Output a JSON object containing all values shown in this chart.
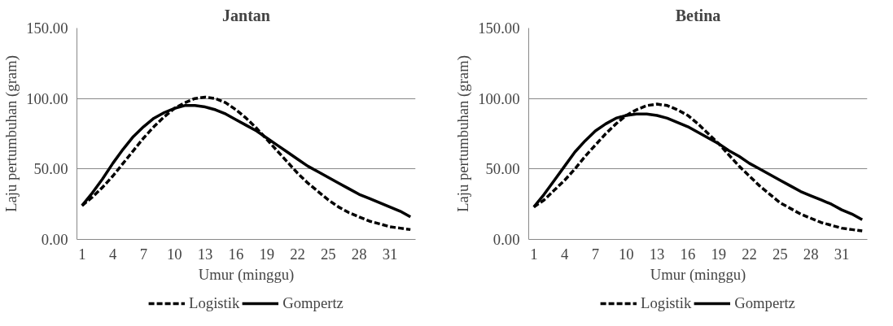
{
  "chart_data": [
    {
      "type": "line",
      "title": "Jantan",
      "xlabel": "Umur (minggu)",
      "ylabel": "Laju pertumbuhan (gram)",
      "categories": [
        "1",
        null,
        null,
        "4",
        null,
        null,
        "7",
        null,
        null,
        "10",
        null,
        null,
        "13",
        null,
        null,
        "16",
        null,
        null,
        "19",
        null,
        null,
        "22",
        null,
        null,
        "25",
        null,
        null,
        "28",
        null,
        null,
        "31",
        null,
        null
      ],
      "series": [
        {
          "name": "Logistik",
          "color": "#000000",
          "line_style": "dashed",
          "values": [
            24,
            30,
            37,
            45,
            54,
            63,
            72,
            80,
            87,
            93,
            97,
            100,
            101,
            100,
            97,
            92,
            86,
            79,
            71,
            63,
            55,
            47,
            40,
            34,
            28,
            23,
            19,
            16,
            13,
            11,
            9,
            8,
            7
          ]
        },
        {
          "name": "Gompertz",
          "color": "#000000",
          "line_style": "solid",
          "values": [
            24,
            33,
            43,
            54,
            64,
            73,
            80,
            86,
            90,
            93,
            95,
            95,
            94,
            92,
            89,
            85,
            81,
            77,
            72,
            67,
            62,
            57,
            52,
            48,
            44,
            40,
            36,
            32,
            29,
            26,
            23,
            20,
            16
          ]
        }
      ],
      "ylim": [
        0,
        150
      ],
      "yticks": [
        {
          "value": 0,
          "label": "0.00"
        },
        {
          "value": 50,
          "label": "50.00"
        },
        {
          "value": 100,
          "label": "100.00"
        },
        {
          "value": 150,
          "label": "150.00"
        }
      ],
      "grid": "y",
      "legend": "bottom",
      "marker": "none"
    },
    {
      "type": "line",
      "title": "Betina",
      "xlabel": "Umur (minggu)",
      "ylabel": "Laju pertumbuhan (gram)",
      "categories": [
        "1",
        null,
        null,
        "4",
        null,
        null,
        "7",
        null,
        null,
        "10",
        null,
        null,
        "13",
        null,
        null,
        "16",
        null,
        null,
        "19",
        null,
        null,
        "22",
        null,
        null,
        "25",
        null,
        null,
        "28",
        null,
        null,
        "31",
        null,
        null
      ],
      "series": [
        {
          "name": "Logistik",
          "color": "#000000",
          "line_style": "dashed",
          "values": [
            23,
            28,
            35,
            42,
            50,
            59,
            67,
            75,
            82,
            88,
            92,
            95,
            96,
            95,
            92,
            88,
            82,
            75,
            68,
            60,
            52,
            45,
            38,
            32,
            26,
            22,
            18,
            15,
            12,
            10,
            8,
            7,
            6
          ]
        },
        {
          "name": "Gompertz",
          "color": "#000000",
          "line_style": "solid",
          "values": [
            23,
            32,
            42,
            52,
            62,
            70,
            77,
            82,
            86,
            88,
            89,
            89,
            88,
            86,
            83,
            80,
            76,
            72,
            68,
            63,
            59,
            54,
            50,
            46,
            42,
            38,
            34,
            31,
            28,
            25,
            21,
            18,
            14
          ]
        }
      ],
      "ylim": [
        0,
        150
      ],
      "yticks": [
        {
          "value": 0,
          "label": "0.00"
        },
        {
          "value": 50,
          "label": "50.00"
        },
        {
          "value": 100,
          "label": "100.00"
        },
        {
          "value": 150,
          "label": "150.00"
        }
      ],
      "grid": "y",
      "legend": "bottom",
      "marker": "none"
    }
  ]
}
